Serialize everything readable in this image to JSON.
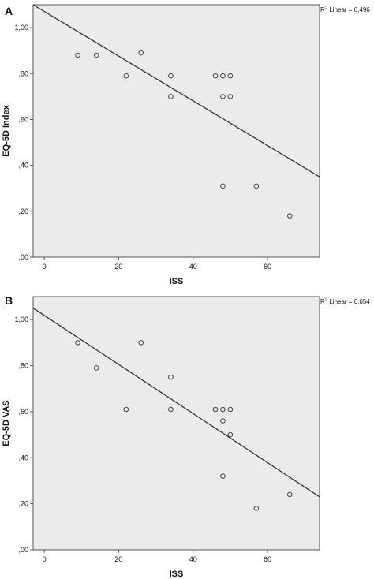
{
  "chart_data": [
    {
      "type": "scatter",
      "panel_label": "A",
      "xlabel": "ISS",
      "ylabel": "EQ-5D Index",
      "xlim": [
        -3,
        74
      ],
      "ylim": [
        0,
        1.1
      ],
      "x_ticks": [
        0,
        20,
        40,
        60
      ],
      "x_tick_labels": [
        "0",
        "20",
        "40",
        "60"
      ],
      "y_ticks": [
        0,
        0.2,
        0.4,
        0.6,
        0.8,
        1.0
      ],
      "y_tick_labels": [
        ",00",
        ",20",
        ",40",
        ",60",
        ",80",
        "1,00"
      ],
      "points": [
        {
          "x": 9,
          "y": 0.88
        },
        {
          "x": 14,
          "y": 0.88
        },
        {
          "x": 22,
          "y": 0.79
        },
        {
          "x": 26,
          "y": 0.89
        },
        {
          "x": 34,
          "y": 0.79
        },
        {
          "x": 34,
          "y": 0.7
        },
        {
          "x": 46,
          "y": 0.79
        },
        {
          "x": 48,
          "y": 0.79
        },
        {
          "x": 50,
          "y": 0.79
        },
        {
          "x": 48,
          "y": 0.7
        },
        {
          "x": 50,
          "y": 0.7
        },
        {
          "x": 48,
          "y": 0.31
        },
        {
          "x": 57,
          "y": 0.31
        },
        {
          "x": 66,
          "y": 0.18
        }
      ],
      "fit_line": {
        "x": [
          -3,
          74
        ],
        "y": [
          1.1,
          0.35
        ]
      },
      "r2_label": "R",
      "r2_sup": "2",
      "r2_text": " Linear = 0,496",
      "grid": false
    },
    {
      "type": "scatter",
      "panel_label": "B",
      "xlabel": "ISS",
      "ylabel": "EQ-5D VAS",
      "xlim": [
        -3,
        74
      ],
      "ylim": [
        0,
        1.1
      ],
      "x_ticks": [
        0,
        20,
        40,
        60
      ],
      "x_tick_labels": [
        "0",
        "20",
        "40",
        "60"
      ],
      "y_ticks": [
        0,
        0.2,
        0.4,
        0.6,
        0.8,
        1.0
      ],
      "y_tick_labels": [
        ",00",
        ",20",
        ",40",
        ",60",
        ",80",
        "1,00"
      ],
      "points": [
        {
          "x": 9,
          "y": 0.9
        },
        {
          "x": 14,
          "y": 0.79
        },
        {
          "x": 22,
          "y": 0.61
        },
        {
          "x": 26,
          "y": 0.9
        },
        {
          "x": 34,
          "y": 0.75
        },
        {
          "x": 34,
          "y": 0.61
        },
        {
          "x": 46,
          "y": 0.61
        },
        {
          "x": 48,
          "y": 0.61
        },
        {
          "x": 50,
          "y": 0.61
        },
        {
          "x": 48,
          "y": 0.56
        },
        {
          "x": 50,
          "y": 0.5
        },
        {
          "x": 48,
          "y": 0.32
        },
        {
          "x": 57,
          "y": 0.18
        },
        {
          "x": 66,
          "y": 0.24
        }
      ],
      "fit_line": {
        "x": [
          -3,
          74
        ],
        "y": [
          1.05,
          0.23
        ]
      },
      "r2_label": "R",
      "r2_sup": "2",
      "r2_text": " Linear = 0,654",
      "grid": false
    }
  ]
}
